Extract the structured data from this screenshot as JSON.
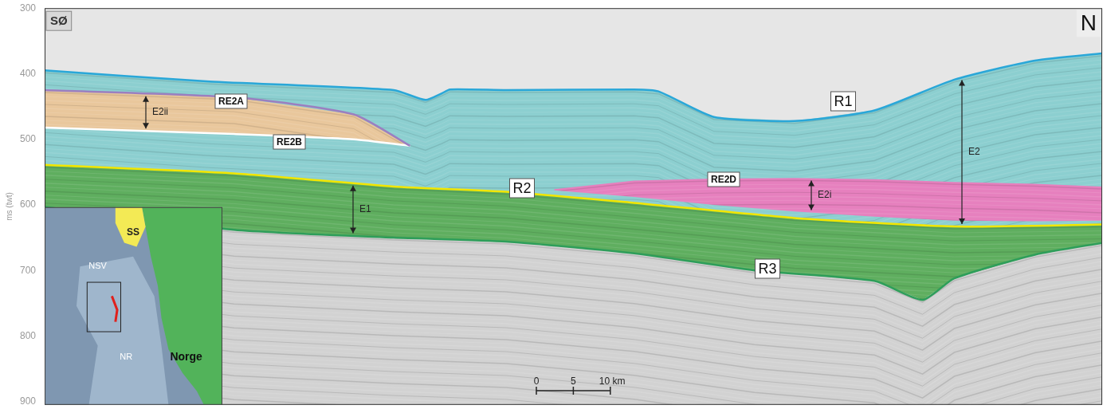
{
  "chart_data": {
    "type": "line",
    "y_label": "ms (twt)",
    "xlim": [
      0,
      143
    ],
    "ylim": [
      300,
      905
    ],
    "yticks": [
      300,
      400,
      500,
      600,
      700,
      800,
      900
    ],
    "grid": false,
    "tick_labels": "y",
    "corner_labels": {
      "left": "SØ",
      "right": "N"
    },
    "horizons": [
      {
        "name": "R1",
        "color": "#2aa7d8",
        "x": [
          0,
          22.3,
          47.2,
          51.5,
          53.7,
          54.8,
          62.4,
          79.7,
          83,
          90.5,
          101.4,
          112.2,
          123,
          133.9,
          143
        ],
        "values": [
          395,
          412,
          425,
          440,
          430,
          424,
          425,
          424,
          427,
          466,
          472,
          456,
          409,
          380,
          369
        ]
      },
      {
        "name": "RE2A",
        "color": "#9b7fc0",
        "x": [
          0,
          25.6,
          41.8,
          49.4
        ],
        "values": [
          425,
          436,
          462,
          510
        ]
      },
      {
        "name": "RE2B",
        "color": "#ffffff",
        "x": [
          0,
          25.6,
          41.8,
          49.4
        ],
        "values": [
          482,
          492,
          500,
          510
        ]
      },
      {
        "name": "R2",
        "color": "#f2e600",
        "x": [
          0,
          25.6,
          47.2,
          62.4,
          79.7,
          101.4,
          123,
          143
        ],
        "values": [
          539,
          552,
          572,
          580,
          597,
          620,
          633,
          630
        ]
      },
      {
        "name": "R3",
        "color": "#2e9e5a",
        "x": [
          0,
          25.6,
          47.2,
          62.4,
          79.7,
          96,
          112.2,
          118.7,
          123,
          133.9,
          143
        ],
        "values": [
          603,
          638,
          650,
          656,
          674,
          700,
          716,
          745,
          712,
          676,
          658
        ]
      }
    ],
    "units": [
      {
        "label": "E2",
        "color": "#8ccfd0",
        "top": "R1",
        "bottom": "R2"
      },
      {
        "label": "E1",
        "color": "#5fae5f",
        "top": "R2",
        "bottom": "R3"
      },
      {
        "label": "E2ii",
        "color": "#e9c79c",
        "top": "RE2A",
        "bottom": "RE2B"
      },
      {
        "label": "E2i",
        "name": "RE2D",
        "color": "#e680be",
        "x": [
          68.9,
          79.7,
          90.5,
          101.4,
          112.2,
          123,
          133.9,
          143
        ],
        "top_values": [
          576,
          563,
          560,
          559,
          561,
          565,
          568,
          572
        ],
        "bottom_values": [
          578,
          588,
          600,
          610,
          618,
          624,
          625,
          624
        ]
      }
    ],
    "scale_bar": {
      "ticks": [
        {
          "value": 0,
          "label": "0"
        },
        {
          "value": 5,
          "label": "5"
        },
        {
          "value": 10,
          "label": "10 km"
        }
      ]
    },
    "inset": {
      "labels": [
        "SS",
        "NSV",
        "NR",
        "Norge"
      ]
    }
  }
}
